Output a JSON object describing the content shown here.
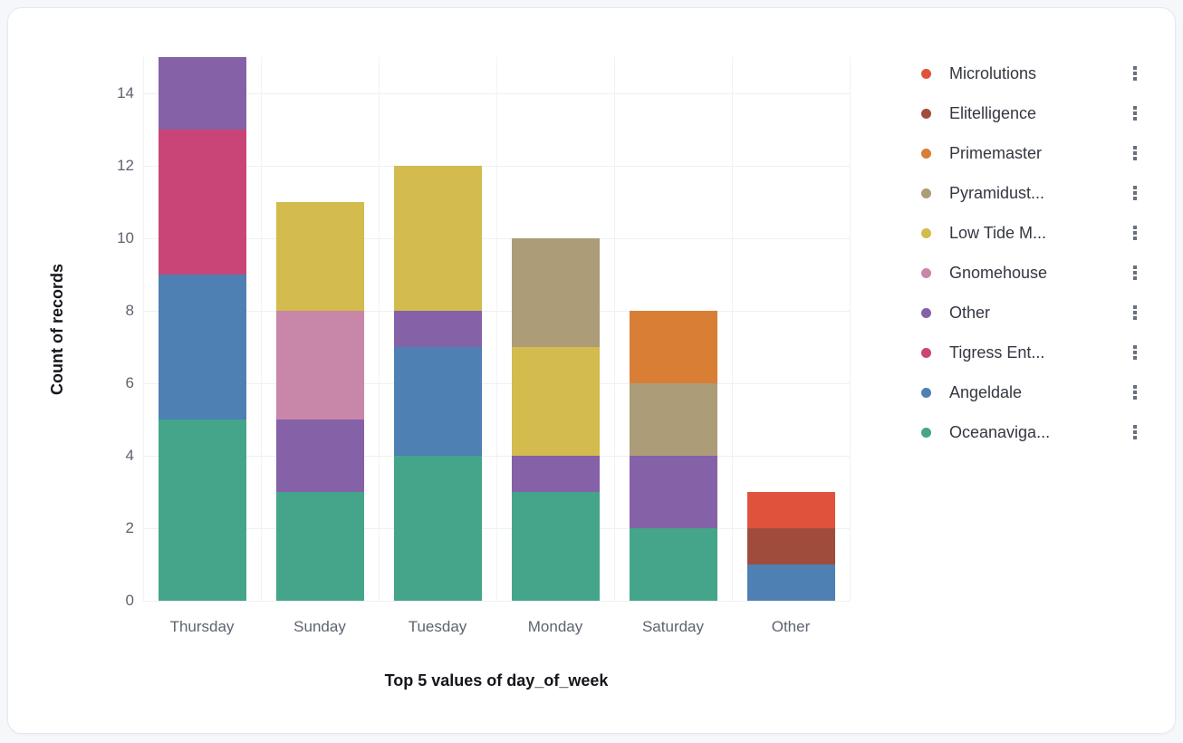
{
  "page": {
    "background_color": "#f5f7fa",
    "panel_background_color": "#ffffff"
  },
  "chart_data": {
    "type": "bar",
    "stacked": true,
    "title": "",
    "xlabel": "Top 5 values of day_of_week",
    "ylabel": "Count of records",
    "categories": [
      "Thursday",
      "Sunday",
      "Tuesday",
      "Monday",
      "Saturday",
      "Other"
    ],
    "series": [
      {
        "name": "Oceanaviga...",
        "color": "#44a58a",
        "values": [
          5,
          3,
          4,
          3,
          2,
          0
        ]
      },
      {
        "name": "Angeldale",
        "color": "#4e80b3",
        "values": [
          4,
          0,
          3,
          0,
          0,
          1
        ]
      },
      {
        "name": "Tigress Ent...",
        "color": "#c94577",
        "values": [
          4,
          0,
          0,
          0,
          0,
          0
        ]
      },
      {
        "name": "Other",
        "color": "#8561a8",
        "values": [
          2,
          2,
          1,
          1,
          2,
          0
        ]
      },
      {
        "name": "Gnomehouse",
        "color": "#c886a8",
        "values": [
          0,
          3,
          0,
          0,
          0,
          0
        ]
      },
      {
        "name": "Low Tide M...",
        "color": "#d3bb4d",
        "values": [
          0,
          3,
          4,
          3,
          0,
          0
        ]
      },
      {
        "name": "Pyramidust...",
        "color": "#ac9c78",
        "values": [
          0,
          0,
          0,
          3,
          2,
          0
        ]
      },
      {
        "name": "Primemaster",
        "color": "#d87e35",
        "values": [
          0,
          0,
          0,
          0,
          2,
          0
        ]
      },
      {
        "name": "Elitelligence",
        "color": "#a04c3d",
        "values": [
          0,
          0,
          0,
          0,
          0,
          1
        ]
      },
      {
        "name": "Microlutions",
        "color": "#e1523c",
        "values": [
          0,
          0,
          0,
          0,
          0,
          1
        ]
      }
    ],
    "ylim": [
      0,
      15
    ],
    "yticks": [
      0,
      2,
      4,
      6,
      8,
      10,
      12,
      14
    ],
    "grid": true,
    "legend_position": "right",
    "legend_order_note": "legend lists series top-to-bottom in reverse stacking order"
  }
}
